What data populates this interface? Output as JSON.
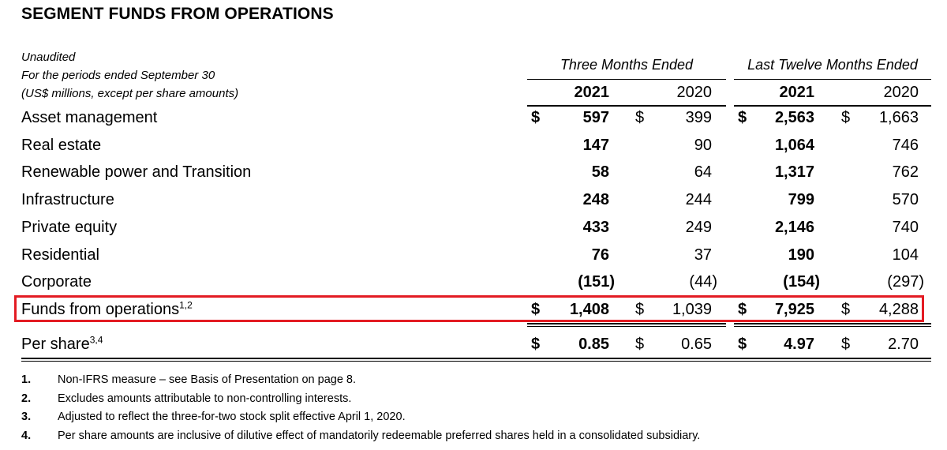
{
  "title": "SEGMENT FUNDS FROM OPERATIONS",
  "header": {
    "notes_lines": [
      "Unaudited",
      "For the periods ended September 30",
      "(US$ millions, except per share amounts)"
    ],
    "period_three_months": "Three Months Ended",
    "period_ltm": "Last Twelve Months Ended",
    "years": [
      "2021",
      "2020",
      "2021",
      "2020"
    ]
  },
  "rows": [
    {
      "label": "Asset management",
      "sup": "",
      "dollars": [
        "$",
        "$",
        "$",
        "$"
      ],
      "values": [
        "597",
        "399",
        "2,563",
        "1,663"
      ]
    },
    {
      "label": "Real estate",
      "sup": "",
      "dollars": [
        "",
        "",
        "",
        ""
      ],
      "values": [
        "147",
        "90",
        "1,064",
        "746"
      ]
    },
    {
      "label": "Renewable power and Transition",
      "sup": "",
      "dollars": [
        "",
        "",
        "",
        ""
      ],
      "values": [
        "58",
        "64",
        "1,317",
        "762"
      ]
    },
    {
      "label": "Infrastructure",
      "sup": "",
      "dollars": [
        "",
        "",
        "",
        ""
      ],
      "values": [
        "248",
        "244",
        "799",
        "570"
      ]
    },
    {
      "label": "Private equity",
      "sup": "",
      "dollars": [
        "",
        "",
        "",
        ""
      ],
      "values": [
        "433",
        "249",
        "2,146",
        "740"
      ]
    },
    {
      "label": "Residential",
      "sup": "",
      "dollars": [
        "",
        "",
        "",
        ""
      ],
      "values": [
        "76",
        "37",
        "190",
        "104"
      ]
    },
    {
      "label": "Corporate",
      "sup": "",
      "dollars": [
        "",
        "",
        "",
        ""
      ],
      "values": [
        "(151)",
        "(44)",
        "(154)",
        "(297)"
      ]
    },
    {
      "label": "Funds from operations",
      "sup": "1,2",
      "dollars": [
        "$",
        "$",
        "$",
        "$"
      ],
      "values": [
        "1,408",
        "1,039",
        "7,925",
        "4,288"
      ]
    },
    {
      "label": "Per share",
      "sup": "3,4",
      "dollars": [
        "$",
        "$",
        "$",
        "$"
      ],
      "values": [
        "0.85",
        "0.65",
        "4.97",
        "2.70"
      ]
    }
  ],
  "footnotes": [
    {
      "num": "1.",
      "text": "Non-IFRS measure – see Basis of Presentation on page 8."
    },
    {
      "num": "2.",
      "text": "Excludes amounts attributable to non-controlling interests."
    },
    {
      "num": "3.",
      "text": "Adjusted to reflect the three-for-two stock split effective April 1, 2020."
    },
    {
      "num": "4.",
      "text": "Per share amounts are inclusive of dilutive effect of mandatorily redeemable preferred shares held in a consolidated subsidiary."
    }
  ],
  "colors": {
    "highlight": "#e31b23",
    "text": "#000000"
  }
}
